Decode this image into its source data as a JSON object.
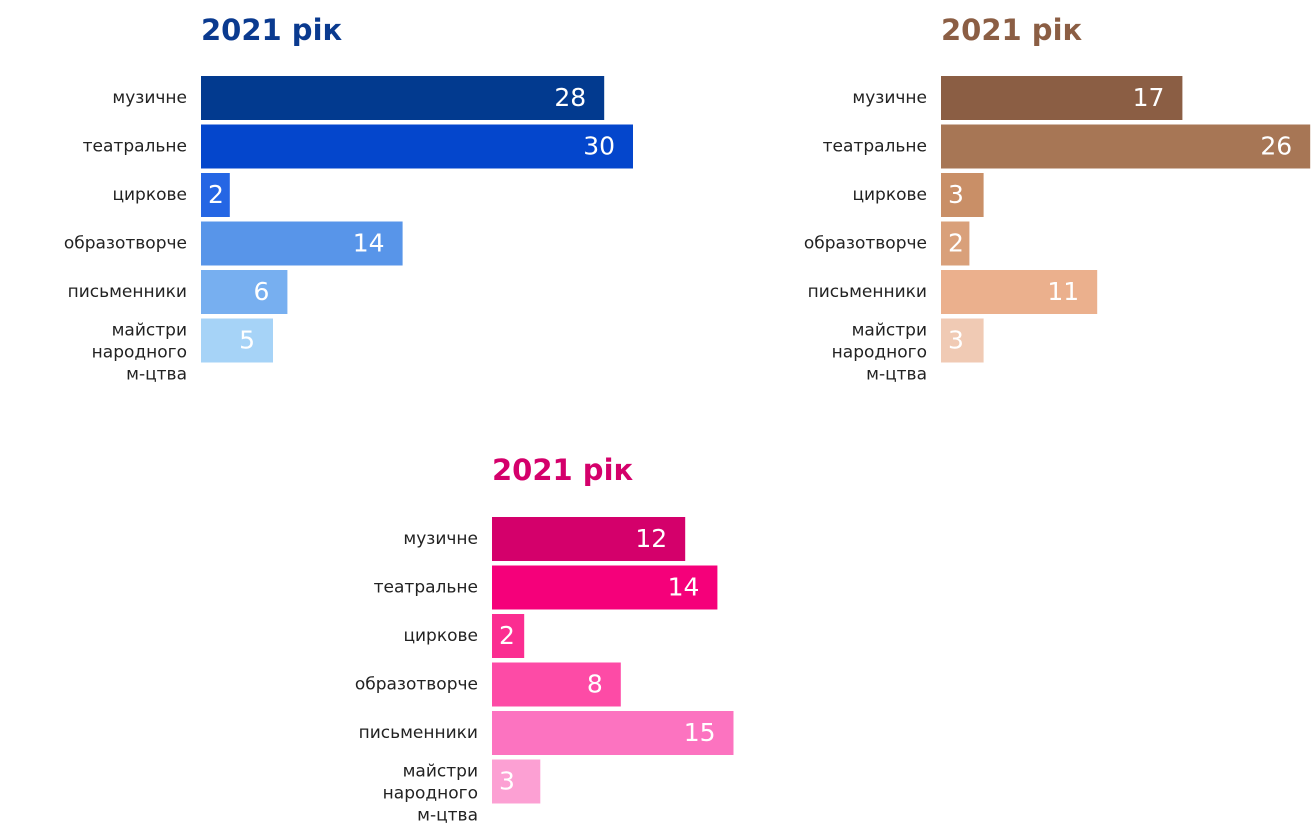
{
  "chart_data": [
    {
      "type": "bar",
      "title": "2021 рік",
      "title_color": "#0a3a8f",
      "categories": [
        "музичне",
        "театральне",
        "циркове",
        "образотворче",
        "письменники",
        "майстри народного м-цтва"
      ],
      "values": [
        28,
        30,
        2,
        14,
        6,
        5
      ],
      "colors": [
        "#023a8f",
        "#0446cc",
        "#2566e4",
        "#5895e9",
        "#77aff0",
        "#a6d3f7"
      ]
    },
    {
      "type": "bar",
      "title": "2021 рік",
      "title_color": "#8b5e44",
      "categories": [
        "музичне",
        "театральне",
        "циркове",
        "образотворче",
        "письменники",
        "майстри народного м-цтва"
      ],
      "values": [
        17,
        26,
        3,
        2,
        11,
        3
      ],
      "colors": [
        "#8b5e44",
        "#a77655",
        "#c98f67",
        "#d9a07a",
        "#ebb08d",
        "#f0cab4"
      ]
    },
    {
      "type": "bar",
      "title": "2021 рік",
      "title_color": "#d4006b",
      "categories": [
        "музичне",
        "театральне",
        "циркове",
        "образотворче",
        "письменники",
        "майстри народного м-цтва"
      ],
      "values": [
        12,
        14,
        2,
        8,
        15,
        3
      ],
      "colors": [
        "#d4006b",
        "#f5007a",
        "#fb2d91",
        "#fd4ba6",
        "#fc73c0",
        "#fca0d3"
      ]
    }
  ]
}
